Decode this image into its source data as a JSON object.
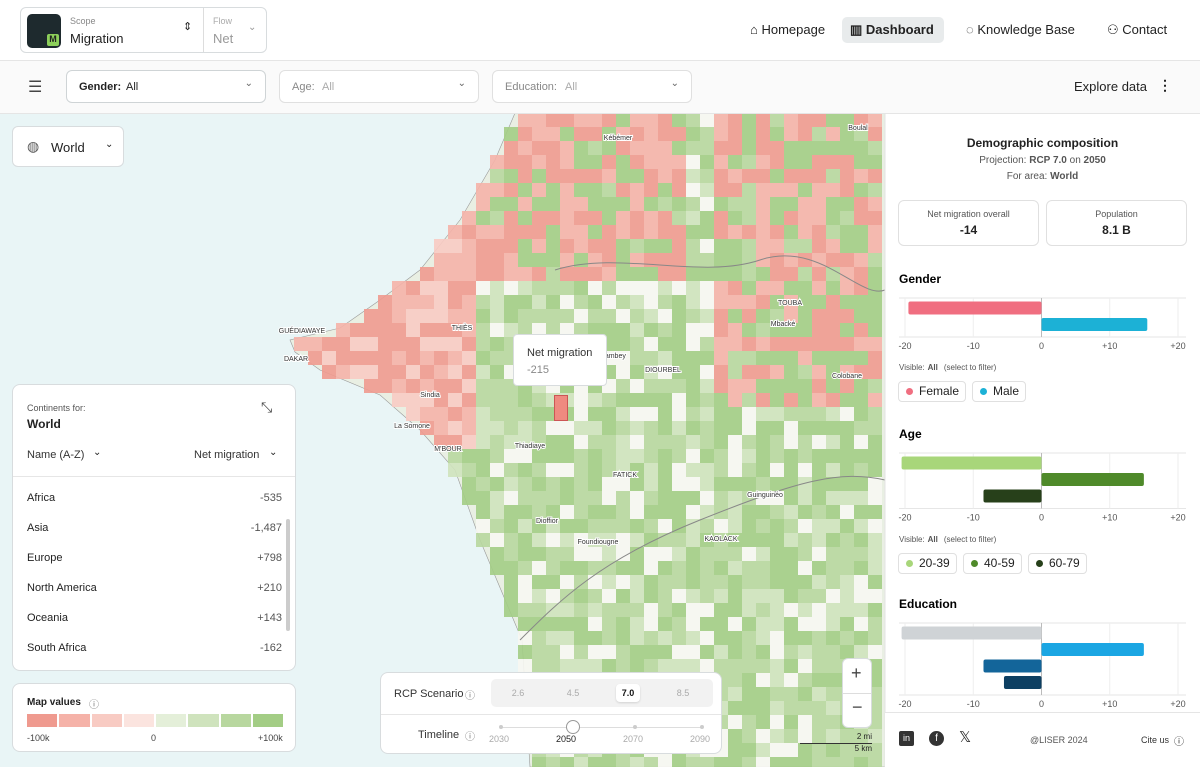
{
  "header": {
    "scope_label": "Scope",
    "scope_value": "Migration",
    "flow_label": "Flow",
    "flow_value": "Net",
    "nav": [
      "Homepage",
      "Dashboard",
      "Knowledge Base",
      "Contact"
    ]
  },
  "filters": {
    "gender": {
      "label": "Gender:",
      "value": "All"
    },
    "age": {
      "label": "Age:",
      "value": "All"
    },
    "education": {
      "label": "Education:",
      "value": "All"
    },
    "explore": "Explore data"
  },
  "map": {
    "region": "World",
    "tooltip": {
      "title": "Net migration",
      "value": "-215"
    },
    "places": [
      "Kébémer",
      "Boulal",
      "TOUBA",
      "Mbacké",
      "THIÈS",
      "GUÉDIAWAYE",
      "DAKAR",
      "Bambey",
      "DIOURBEL",
      "Colobane",
      "Sindia",
      "La Somone",
      "M'BOUR",
      "Thiadiaye",
      "FATICK",
      "Guinguinéo",
      "Dioffior",
      "Foundiougne",
      "KAOLACK"
    ],
    "scale": [
      "2 mi",
      "5 km"
    ]
  },
  "continents": {
    "title": "Continents for:",
    "region": "World",
    "sort_name": "Name (A-Z)",
    "sort_value": "Net migration",
    "rows": [
      [
        "Africa",
        "-535"
      ],
      [
        "Asia",
        "-1,487"
      ],
      [
        "Europe",
        "+798"
      ],
      [
        "North America",
        "+210"
      ],
      [
        "Oceania",
        "+143"
      ],
      [
        "South Africa",
        "-162"
      ]
    ]
  },
  "legend": {
    "title": "Map values",
    "labels": [
      "-100k",
      "0",
      "+100k"
    ],
    "colors": [
      "#ef9a8f",
      "#f5b2a8",
      "#f8cbc3",
      "#fbe4df",
      "#e4efd9",
      "#cfe3bd",
      "#b8d79f",
      "#a3cd85"
    ]
  },
  "controls": {
    "rcp_label": "RCP Scenario",
    "rcp_options": [
      "2.6",
      "4.5",
      "7.0",
      "8.5"
    ],
    "rcp_selected": 2,
    "timeline_label": "Timeline",
    "timeline_options": [
      "2030",
      "2050",
      "2070",
      "2090"
    ],
    "timeline_selected": 1
  },
  "sidebar": {
    "title": "Demographic composition",
    "projection_label": "Projection:",
    "projection": "RCP 7.0",
    "on": "on",
    "year": "2050",
    "area_label": "For area:",
    "area": "World",
    "stats": [
      {
        "label": "Net migration overall",
        "value": "-14"
      },
      {
        "label": "Population",
        "value": "8.1 B"
      }
    ],
    "visible_label": "Visible:",
    "visible": "All",
    "hint": "(select to filter)",
    "charts": [
      {
        "type": "bar",
        "title": "Gender",
        "xlim": [
          -20,
          20
        ],
        "xticks": [
          -20,
          -10,
          0,
          {
            "value": 10,
            "label": "+10"
          },
          {
            "value": 20,
            "label": "+20"
          }
        ],
        "series": [
          {
            "name": "Female",
            "color": "#f06e80",
            "value": -19.5
          },
          {
            "name": "Male",
            "color": "#1cb1d6",
            "value": 15.5
          }
        ]
      },
      {
        "type": "bar",
        "title": "Age",
        "xlim": [
          -20,
          20
        ],
        "xticks": [
          -20,
          -10,
          0,
          {
            "value": 10,
            "label": "+10"
          },
          {
            "value": 20,
            "label": "+20"
          }
        ],
        "series": [
          {
            "name": "20-39",
            "color": "#a8d67a",
            "value": -20.5
          },
          {
            "name": "40-59",
            "color": "#4f8a2a",
            "value": 15
          },
          {
            "name": "60-79",
            "color": "#27401a",
            "value": -8.5
          }
        ]
      },
      {
        "type": "bar",
        "title": "Education",
        "xlim": [
          -20,
          20
        ],
        "xticks": [
          -20,
          -10,
          0,
          {
            "value": 10,
            "label": "+10"
          },
          {
            "value": 20,
            "label": "+20"
          }
        ],
        "series": [
          {
            "color": "#cfd3d6",
            "value": -20.5
          },
          {
            "color": "#1ba6e3",
            "value": 15
          },
          {
            "color": "#13659a",
            "value": -8.5
          },
          {
            "color": "#0d3f62",
            "value": -5.5
          }
        ]
      }
    ]
  },
  "footer": {
    "copyright": "@LISER 2024",
    "cite": "Cite us"
  }
}
